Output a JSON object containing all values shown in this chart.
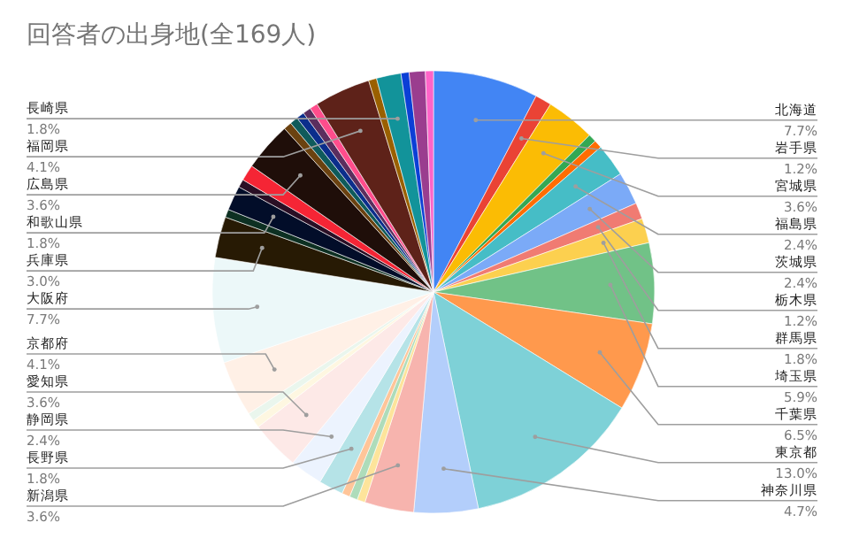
{
  "chart_data": {
    "type": "pie",
    "title": "回答者の出身地(全169人)",
    "categories": [
      "北海道",
      "岩手県",
      "宮城県",
      null,
      null,
      "福島県",
      "茨城県",
      "栃木県",
      "群馬県",
      "埼玉県",
      "千葉県",
      "東京都",
      "神奈川県",
      "新潟県",
      null,
      null,
      null,
      "長野県",
      "静岡県",
      "愛知県",
      null,
      null,
      "京都府",
      "大阪府",
      "兵庫県",
      null,
      "和歌山県",
      null,
      null,
      "広島県",
      null,
      null,
      null,
      null,
      null,
      "福岡県",
      null,
      "長崎県",
      null,
      null,
      null
    ],
    "values": [
      7.7,
      1.2,
      3.6,
      0.59,
      0.59,
      2.4,
      2.4,
      1.2,
      1.8,
      5.9,
      6.5,
      13.0,
      4.7,
      3.6,
      0.59,
      0.59,
      0.59,
      1.8,
      2.4,
      3.6,
      0.59,
      0.59,
      4.1,
      7.7,
      3.0,
      0.59,
      1.8,
      0.59,
      1.18,
      3.6,
      0.59,
      0.59,
      0.59,
      0.59,
      0.59,
      4.1,
      0.59,
      1.8,
      0.59,
      1.18,
      0.59
    ],
    "value_labels": [
      "7.7%",
      "1.2%",
      "3.6%",
      null,
      null,
      "2.4%",
      "2.4%",
      "1.2%",
      "1.8%",
      "5.9%",
      "6.5%",
      "13.0%",
      "4.7%",
      "3.6%",
      null,
      null,
      null,
      "1.8%",
      "2.4%",
      "3.6%",
      null,
      null,
      "4.1%",
      "7.7%",
      "3.0%",
      null,
      "1.8%",
      null,
      null,
      "3.6%",
      null,
      null,
      null,
      null,
      null,
      "4.1%",
      null,
      "1.8%",
      null,
      null,
      null
    ],
    "colors": [
      "#4285f4",
      "#ea4335",
      "#fbbc04",
      "#34a853",
      "#ff6d01",
      "#46bdc6",
      "#7baaf7",
      "#f07b72",
      "#fcd04f",
      "#71c287",
      "#ff994d",
      "#7ed1d7",
      "#b3cefb",
      "#f7b4ae",
      "#fde49b",
      "#aedcba",
      "#ffc599",
      "#b5e3e7",
      "#ecf3fe",
      "#fde9e7",
      "#fef7e1",
      "#eaf6ed",
      "#fff0e6",
      "#ecf8f9",
      "#271a04",
      "#0d3022",
      "#020d29",
      "#2a0f25",
      "#f52535",
      "#1f0e09",
      "#6b4210",
      "#0f5b5b",
      "#0b2e8c",
      "#5b2e5e",
      "#ff4d8c",
      "#5e2219",
      "#9a6000",
      "#12939a",
      "#0b3fd6",
      "#9a3d8f",
      "#ff63c8"
    ],
    "data_labels": false
  }
}
